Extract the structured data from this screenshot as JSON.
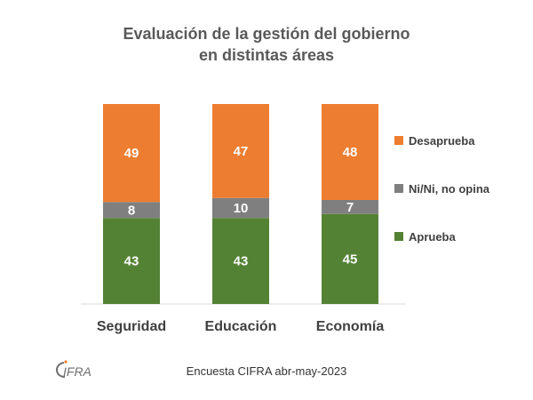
{
  "chart_data": {
    "type": "bar",
    "stacked": true,
    "title": [
      "Evaluación de la gestión del gobierno",
      "en distintas áreas"
    ],
    "categories": [
      "Seguridad",
      "Educación",
      "Economía"
    ],
    "series": [
      {
        "name": "Aprueba",
        "values": [
          43,
          43,
          45
        ],
        "color": "#548235"
      },
      {
        "name": "Ni/Ni, no opina",
        "values": [
          8,
          10,
          7
        ],
        "color": "#7f7f7f"
      },
      {
        "name": "Desaprueba",
        "values": [
          49,
          47,
          48
        ],
        "color": "#ed7d31"
      }
    ],
    "ylim": [
      0,
      100
    ],
    "grid": false,
    "legend_position": "right"
  },
  "footer": {
    "source": "Encuesta CIFRA abr-may-2023",
    "logo_text": "CIFRA"
  }
}
